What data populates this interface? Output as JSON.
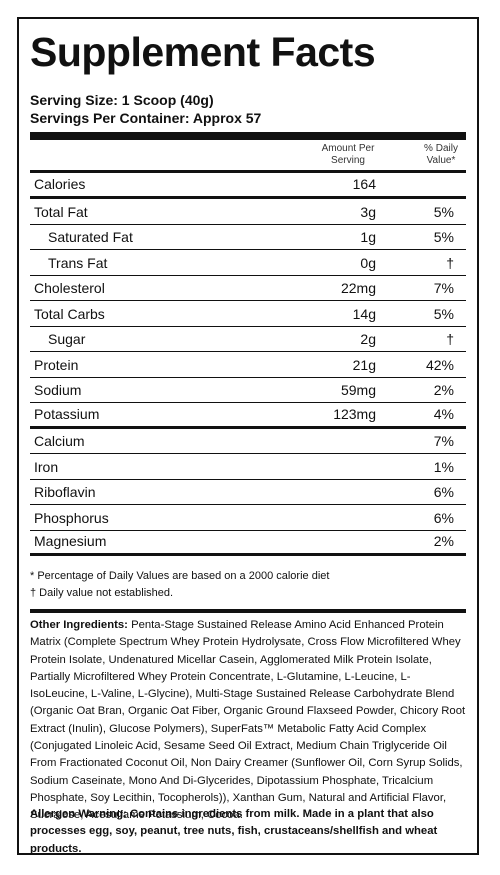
{
  "title": "Supplement Facts",
  "serving_size": "Serving Size: 1 Scoop (40g)",
  "servings_per_container": "Servings Per Container: Approx 57",
  "header": {
    "amount_per_serving": [
      "Amount Per",
      "Serving"
    ],
    "daily_value": [
      "% Daily",
      "Value*"
    ]
  },
  "rows": [
    {
      "name": "Calories",
      "amount": "164",
      "dv": ""
    },
    {
      "name": "Total Fat",
      "amount": "3g",
      "dv": "5%"
    },
    {
      "name": "Saturated Fat",
      "amount": "1g",
      "dv": "5%"
    },
    {
      "name": "Trans Fat",
      "amount": "0g",
      "dv": "†"
    },
    {
      "name": "Cholesterol",
      "amount": "22mg",
      "dv": "7%"
    },
    {
      "name": "Total Carbs",
      "amount": "14g",
      "dv": "5%"
    },
    {
      "name": "Sugar",
      "amount": "2g",
      "dv": "†"
    },
    {
      "name": "Protein",
      "amount": "21g",
      "dv": "42%"
    },
    {
      "name": "Sodium",
      "amount": "59mg",
      "dv": "2%"
    },
    {
      "name": "Potassium",
      "amount": "123mg",
      "dv": "4%"
    },
    {
      "name": "Calcium",
      "amount": "",
      "dv": "7%"
    },
    {
      "name": "Iron",
      "amount": "",
      "dv": "1%"
    },
    {
      "name": "Riboflavin",
      "amount": "",
      "dv": "6%"
    },
    {
      "name": "Phosphorus",
      "amount": "",
      "dv": "6%"
    },
    {
      "name": "Magnesium",
      "amount": "",
      "dv": "2%"
    }
  ],
  "footnotes": {
    "percent_dv": "* Percentage of Daily Values are based on a 2000 calorie diet",
    "not_established": "† Daily value not established."
  },
  "other_ingredients": {
    "label": "Other Ingredients:",
    "text": "Penta-Stage Sustained Release Amino Acid Enhanced Protein Matrix (Complete Spectrum Whey Protein Hydrolysate, Cross Flow Microfiltered Whey Protein Isolate, Undenatured Micellar Casein, Agglomerated Milk Protein Isolate, Partially Microfiltered Whey Protein Concentrate, L-Glutamine, L-Leucine, L-IsoLeucine, L-Valine, L-Glycine), Multi-Stage Sustained Release Carbohydrate Blend (Organic Oat Bran, Organic Oat Fiber, Organic Ground Flaxseed Powder, Chicory Root Extract (Inulin), Glucose Polymers), SuperFats™ Metabolic Fatty Acid Complex (Conjugated Linoleic Acid, Sesame Seed Oil Extract, Medium Chain Triglyceride Oil From Fractionated Coconut Oil, Non Dairy Creamer (Sunflower Oil, Corn Syrup Solids, Sodium Caseinate, Mono And Di-Glycerides, Dipotassium Phosphate, Tricalcium Phosphate, Soy Lecithin, Tocopherols)), Xanthan Gum, Natural and Artificial Flavor, Sucralose, Acesulfame Potassium, Cocoa."
  },
  "allergen": {
    "text": "Allergen Warning: Contains ingredients from milk. Made in a plant that also processes egg, soy, peanut, tree nuts, fish, crustaceans/shellfish and wheat products."
  }
}
